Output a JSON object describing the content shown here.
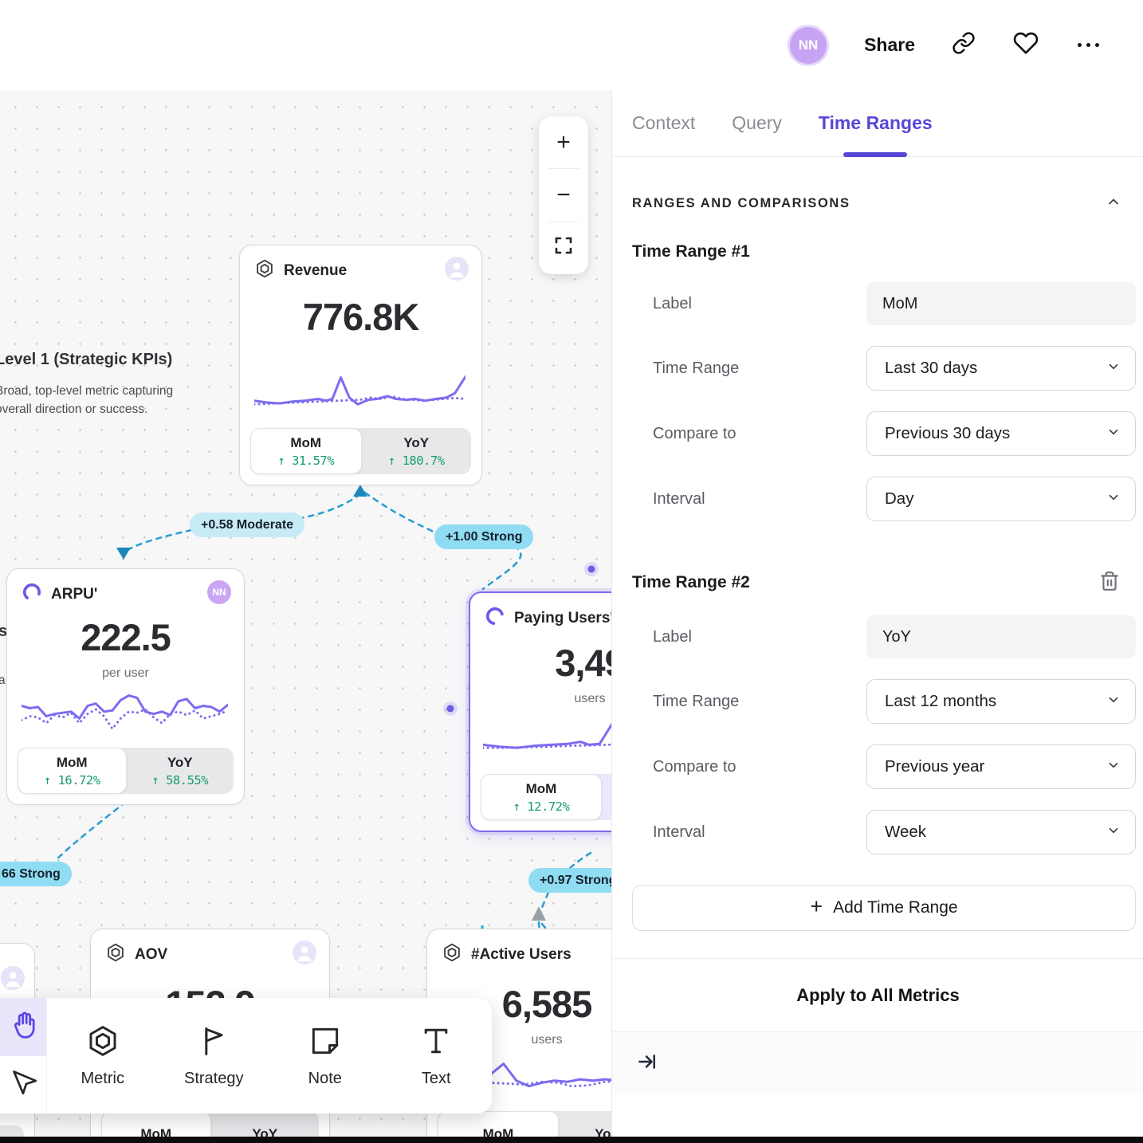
{
  "topbar": {
    "avatar_initials": "NN",
    "share_label": "Share"
  },
  "side_panel": {
    "tabs": {
      "context": "Context",
      "query": "Query",
      "time_ranges": "Time Ranges"
    },
    "section_header": "RANGES AND COMPARISONS",
    "range1": {
      "heading": "Time Range #1",
      "label_field": "Label",
      "label_value": "MoM",
      "time_range_field": "Time Range",
      "time_range_value": "Last 30 days",
      "compare_field": "Compare to",
      "compare_value": "Previous 30 days",
      "interval_field": "Interval",
      "interval_value": "Day"
    },
    "range2": {
      "heading": "Time Range #2",
      "label_field": "Label",
      "label_value": "YoY",
      "time_range_field": "Time Range",
      "time_range_value": "Last 12 months",
      "compare_field": "Compare to",
      "compare_value": "Previous year",
      "interval_field": "Interval",
      "interval_value": "Week"
    },
    "add_time_range_label": "Add Time Range",
    "apply_all_label": "Apply to All Metrics"
  },
  "canvas": {
    "annotation": {
      "title": "Level 1 (Strategic KPIs)",
      "desc_line1": "Broad, top-level metric capturing",
      "desc_line2": "overall direction or success.",
      "frag1": "s",
      "frag2": "a"
    },
    "badges": {
      "moderate_058": "+0.58 Moderate",
      "strong_100": "+1.00 Strong",
      "strong_066": "66 Strong",
      "strong_097": "+0.97 Strong"
    },
    "cards": {
      "revenue": {
        "title": "Revenue",
        "value": "776.8K",
        "tab1_label": "MoM",
        "tab1_value": "↑ 31.57%",
        "tab2_label": "YoY",
        "tab2_value": "↑ 180.7%"
      },
      "arpu": {
        "title": "ARPU'",
        "value": "222.5",
        "unit": "per user",
        "owner_initials": "NN",
        "tab1_label": "MoM",
        "tab1_value": "↑ 16.72%",
        "tab2_label": "YoY",
        "tab2_value": "↑ 58.55%"
      },
      "paying_users": {
        "title": "Paying Users'",
        "value": "3,49",
        "unit": "users",
        "tab1_label": "MoM",
        "tab1_value": "↑ 12.72%"
      },
      "aov": {
        "title": "AOV",
        "value": "152.9",
        "tab1_label": "MoM",
        "tab2_label": "YoY"
      },
      "active_users": {
        "title": "#Active Users",
        "value": "6,585",
        "unit": "users",
        "tab1_label": "MoM",
        "tab2_label": "YoY"
      }
    },
    "toolbar": {
      "metric": "Metric",
      "strategy": "Strategy",
      "note": "Note",
      "text": "Text"
    }
  },
  "sparks": {
    "revenue": {
      "solid": [
        [
          0,
          62
        ],
        [
          6,
          66
        ],
        [
          12,
          68
        ],
        [
          18,
          64
        ],
        [
          24,
          62
        ],
        [
          30,
          58
        ],
        [
          34,
          62
        ],
        [
          37,
          58
        ],
        [
          41,
          10
        ],
        [
          45,
          55
        ],
        [
          49,
          70
        ],
        [
          54,
          60
        ],
        [
          58,
          58
        ],
        [
          63,
          52
        ],
        [
          67,
          58
        ],
        [
          72,
          60
        ],
        [
          76,
          58
        ],
        [
          81,
          62
        ],
        [
          86,
          58
        ],
        [
          91,
          55
        ],
        [
          95,
          45
        ],
        [
          100,
          8
        ]
      ],
      "dotted": [
        [
          0,
          70
        ],
        [
          10,
          68
        ],
        [
          20,
          66
        ],
        [
          30,
          64
        ],
        [
          40,
          62
        ],
        [
          50,
          60
        ],
        [
          55,
          55
        ],
        [
          60,
          58
        ],
        [
          65,
          52
        ],
        [
          70,
          58
        ],
        [
          75,
          60
        ],
        [
          80,
          62
        ],
        [
          85,
          60
        ],
        [
          90,
          58
        ],
        [
          95,
          56
        ],
        [
          100,
          58
        ]
      ]
    },
    "arpu": {
      "solid": [
        [
          0,
          30
        ],
        [
          4,
          34
        ],
        [
          8,
          32
        ],
        [
          12,
          48
        ],
        [
          16,
          44
        ],
        [
          20,
          42
        ],
        [
          24,
          40
        ],
        [
          28,
          52
        ],
        [
          32,
          30
        ],
        [
          36,
          26
        ],
        [
          40,
          40
        ],
        [
          44,
          38
        ],
        [
          48,
          20
        ],
        [
          52,
          12
        ],
        [
          56,
          16
        ],
        [
          60,
          40
        ],
        [
          64,
          44
        ],
        [
          68,
          40
        ],
        [
          72,
          46
        ],
        [
          76,
          22
        ],
        [
          80,
          18
        ],
        [
          84,
          34
        ],
        [
          88,
          30
        ],
        [
          92,
          32
        ],
        [
          96,
          40
        ],
        [
          100,
          28
        ]
      ],
      "dotted": [
        [
          0,
          55
        ],
        [
          4,
          48
        ],
        [
          8,
          50
        ],
        [
          12,
          60
        ],
        [
          16,
          46
        ],
        [
          20,
          50
        ],
        [
          24,
          42
        ],
        [
          28,
          60
        ],
        [
          32,
          44
        ],
        [
          36,
          36
        ],
        [
          40,
          48
        ],
        [
          44,
          70
        ],
        [
          48,
          52
        ],
        [
          52,
          40
        ],
        [
          56,
          42
        ],
        [
          60,
          36
        ],
        [
          64,
          50
        ],
        [
          68,
          60
        ],
        [
          72,
          44
        ],
        [
          76,
          40
        ],
        [
          80,
          46
        ],
        [
          84,
          38
        ],
        [
          88,
          52
        ],
        [
          92,
          48
        ],
        [
          96,
          44
        ],
        [
          100,
          38
        ]
      ]
    },
    "paying": {
      "solid": [
        [
          0,
          62
        ],
        [
          8,
          66
        ],
        [
          16,
          68
        ],
        [
          24,
          64
        ],
        [
          32,
          62
        ],
        [
          40,
          60
        ],
        [
          46,
          56
        ],
        [
          50,
          62
        ],
        [
          55,
          60
        ],
        [
          62,
          12
        ],
        [
          68,
          58
        ],
        [
          74,
          68
        ],
        [
          80,
          60
        ],
        [
          86,
          52
        ],
        [
          92,
          58
        ],
        [
          100,
          55
        ]
      ],
      "dotted": [
        [
          0,
          68
        ],
        [
          10,
          68
        ],
        [
          20,
          67
        ],
        [
          30,
          66
        ],
        [
          40,
          64
        ],
        [
          50,
          63
        ],
        [
          58,
          62
        ],
        [
          66,
          62
        ],
        [
          74,
          60
        ],
        [
          82,
          56
        ],
        [
          90,
          60
        ],
        [
          100,
          62
        ]
      ]
    },
    "active": {
      "solid": [
        [
          0,
          62
        ],
        [
          6,
          64
        ],
        [
          12,
          62
        ],
        [
          18,
          60
        ],
        [
          24,
          40
        ],
        [
          30,
          16
        ],
        [
          36,
          55
        ],
        [
          42,
          68
        ],
        [
          48,
          60
        ],
        [
          54,
          55
        ],
        [
          60,
          58
        ],
        [
          66,
          52
        ],
        [
          72,
          55
        ],
        [
          78,
          52
        ],
        [
          84,
          55
        ],
        [
          90,
          52
        ],
        [
          96,
          55
        ],
        [
          100,
          54
        ]
      ],
      "dotted": [
        [
          0,
          64
        ],
        [
          8,
          65
        ],
        [
          16,
          64
        ],
        [
          24,
          60
        ],
        [
          32,
          62
        ],
        [
          40,
          64
        ],
        [
          48,
          58
        ],
        [
          56,
          60
        ],
        [
          62,
          68
        ],
        [
          70,
          66
        ],
        [
          78,
          58
        ],
        [
          86,
          56
        ],
        [
          94,
          58
        ],
        [
          100,
          58
        ]
      ]
    }
  }
}
